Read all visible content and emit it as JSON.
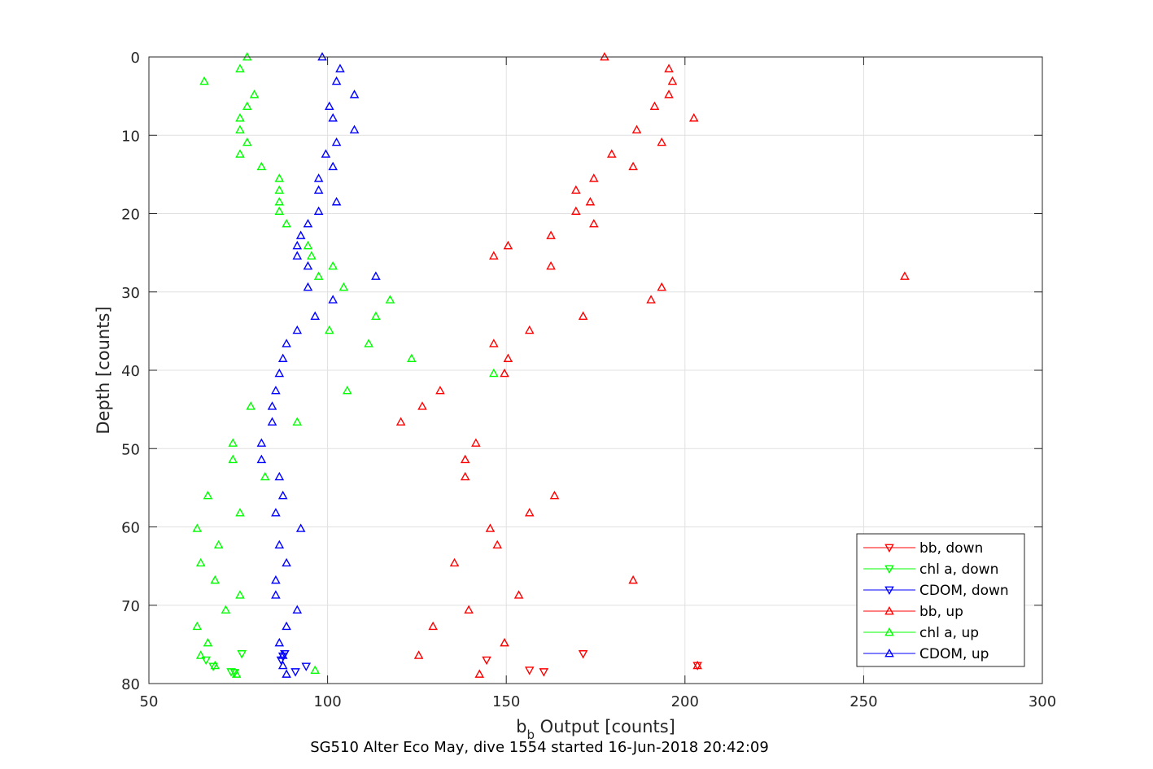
{
  "chart_data": {
    "type": "scatter",
    "x_label": {
      "main": "b",
      "sub": "b",
      "rest": " Output [counts]"
    },
    "ylabel": "Depth [counts]",
    "caption": "SG510 Alter Eco May, dive 1554 started 16-Jun-2018 20:42:09",
    "xlim": [
      50,
      300
    ],
    "ylim": [
      0,
      80
    ],
    "y_reversed": true,
    "grid": true,
    "legend_position": "bottom-right",
    "x_ticks": [
      "50",
      "100",
      "150",
      "200",
      "250",
      "300"
    ],
    "y_ticks": [
      "0",
      "10",
      "20",
      "30",
      "40",
      "50",
      "60",
      "70",
      "80"
    ],
    "series": [
      {
        "name": "bb, down",
        "color": "#ff0000",
        "marker": "triangle-down",
        "points": [
          [
            144.5,
            77.0
          ],
          [
            156.5,
            78.3
          ],
          [
            160.5,
            78.5
          ],
          [
            171.5,
            76.2
          ],
          [
            203.5,
            77.7
          ]
        ]
      },
      {
        "name": "chl a, down",
        "color": "#00ff00",
        "marker": "triangle-down",
        "points": [
          [
            66.0,
            77.0
          ],
          [
            68.0,
            77.8
          ],
          [
            73.0,
            78.5
          ],
          [
            74.0,
            78.6
          ],
          [
            76.0,
            76.2
          ]
        ]
      },
      {
        "name": "CDOM, down",
        "color": "#0000ff",
        "marker": "triangle-down",
        "points": [
          [
            87.0,
            77.0
          ],
          [
            87.5,
            76.5
          ],
          [
            88.0,
            76.2
          ],
          [
            91.0,
            78.5
          ],
          [
            94.0,
            77.8
          ]
        ]
      },
      {
        "name": "bb, up",
        "color": "#ff0000",
        "marker": "triangle-up",
        "points": [
          [
            177.5,
            0.0
          ],
          [
            195.5,
            1.5
          ],
          [
            196.5,
            3.1
          ],
          [
            195.5,
            4.8
          ],
          [
            191.5,
            6.3
          ],
          [
            202.5,
            7.8
          ],
          [
            186.5,
            9.3
          ],
          [
            193.5,
            10.9
          ],
          [
            179.5,
            12.4
          ],
          [
            185.5,
            14.0
          ],
          [
            174.5,
            15.5
          ],
          [
            169.5,
            17.0
          ],
          [
            173.5,
            18.5
          ],
          [
            169.5,
            19.7
          ],
          [
            174.5,
            21.3
          ],
          [
            162.5,
            22.8
          ],
          [
            150.5,
            24.1
          ],
          [
            146.5,
            25.4
          ],
          [
            162.5,
            26.7
          ],
          [
            261.5,
            28.0
          ],
          [
            193.5,
            29.4
          ],
          [
            190.5,
            31.0
          ],
          [
            171.5,
            33.1
          ],
          [
            156.5,
            34.9
          ],
          [
            146.5,
            36.6
          ],
          [
            150.5,
            38.5
          ],
          [
            149.5,
            40.4
          ],
          [
            131.5,
            42.6
          ],
          [
            126.5,
            44.6
          ],
          [
            120.5,
            46.6
          ],
          [
            141.5,
            49.3
          ],
          [
            138.5,
            51.4
          ],
          [
            138.5,
            53.6
          ],
          [
            163.5,
            56.0
          ],
          [
            156.5,
            58.2
          ],
          [
            145.5,
            60.2
          ],
          [
            147.5,
            62.3
          ],
          [
            135.5,
            64.6
          ],
          [
            185.5,
            66.8
          ],
          [
            153.5,
            68.7
          ],
          [
            139.5,
            70.6
          ],
          [
            129.5,
            72.7
          ],
          [
            149.5,
            74.8
          ],
          [
            125.5,
            76.4
          ],
          [
            142.5,
            78.8
          ],
          [
            203.5,
            77.7
          ]
        ]
      },
      {
        "name": "chl a, up",
        "color": "#00ff00",
        "marker": "triangle-up",
        "points": [
          [
            77.5,
            0.0
          ],
          [
            75.5,
            1.5
          ],
          [
            65.5,
            3.1
          ],
          [
            79.5,
            4.8
          ],
          [
            77.5,
            6.3
          ],
          [
            75.5,
            7.8
          ],
          [
            75.5,
            9.3
          ],
          [
            77.5,
            10.9
          ],
          [
            75.5,
            12.4
          ],
          [
            81.5,
            14.0
          ],
          [
            86.5,
            15.5
          ],
          [
            86.5,
            17.0
          ],
          [
            86.5,
            18.5
          ],
          [
            86.5,
            19.7
          ],
          [
            88.5,
            21.3
          ],
          [
            94.5,
            24.1
          ],
          [
            95.5,
            25.4
          ],
          [
            101.5,
            26.7
          ],
          [
            97.5,
            28.0
          ],
          [
            104.5,
            29.4
          ],
          [
            117.5,
            31.0
          ],
          [
            113.5,
            33.1
          ],
          [
            100.5,
            34.9
          ],
          [
            111.5,
            36.6
          ],
          [
            123.5,
            38.5
          ],
          [
            146.5,
            40.4
          ],
          [
            105.5,
            42.6
          ],
          [
            78.5,
            44.6
          ],
          [
            91.5,
            46.6
          ],
          [
            73.5,
            49.3
          ],
          [
            73.5,
            51.4
          ],
          [
            82.5,
            53.6
          ],
          [
            66.5,
            56.0
          ],
          [
            75.5,
            58.2
          ],
          [
            63.5,
            60.2
          ],
          [
            69.5,
            62.3
          ],
          [
            64.5,
            64.6
          ],
          [
            68.5,
            66.8
          ],
          [
            75.5,
            68.7
          ],
          [
            71.5,
            70.6
          ],
          [
            63.5,
            72.7
          ],
          [
            66.5,
            74.8
          ],
          [
            64.5,
            76.4
          ],
          [
            68.5,
            77.7
          ],
          [
            74.5,
            78.8
          ],
          [
            96.5,
            78.3
          ]
        ]
      },
      {
        "name": "CDOM, up",
        "color": "#0000ff",
        "marker": "triangle-up",
        "points": [
          [
            98.5,
            0.0
          ],
          [
            103.5,
            1.5
          ],
          [
            102.5,
            3.1
          ],
          [
            107.5,
            4.8
          ],
          [
            100.5,
            6.3
          ],
          [
            101.5,
            7.8
          ],
          [
            107.5,
            9.3
          ],
          [
            102.5,
            10.9
          ],
          [
            99.5,
            12.4
          ],
          [
            101.5,
            14.0
          ],
          [
            97.5,
            15.5
          ],
          [
            97.5,
            17.0
          ],
          [
            102.5,
            18.5
          ],
          [
            97.5,
            19.7
          ],
          [
            94.5,
            21.3
          ],
          [
            92.5,
            22.8
          ],
          [
            91.5,
            24.1
          ],
          [
            91.5,
            25.4
          ],
          [
            94.5,
            26.7
          ],
          [
            113.5,
            28.0
          ],
          [
            94.5,
            29.4
          ],
          [
            101.5,
            31.0
          ],
          [
            96.5,
            33.1
          ],
          [
            91.5,
            34.9
          ],
          [
            88.5,
            36.6
          ],
          [
            87.5,
            38.5
          ],
          [
            86.5,
            40.4
          ],
          [
            85.5,
            42.6
          ],
          [
            84.5,
            44.6
          ],
          [
            84.5,
            46.6
          ],
          [
            81.5,
            49.3
          ],
          [
            81.5,
            51.4
          ],
          [
            86.5,
            53.6
          ],
          [
            87.5,
            56.0
          ],
          [
            85.5,
            58.2
          ],
          [
            92.5,
            60.2
          ],
          [
            86.5,
            62.3
          ],
          [
            88.5,
            64.6
          ],
          [
            85.5,
            66.8
          ],
          [
            85.5,
            68.7
          ],
          [
            91.5,
            70.6
          ],
          [
            88.5,
            72.7
          ],
          [
            86.5,
            74.8
          ],
          [
            87.5,
            76.4
          ],
          [
            87.5,
            77.7
          ],
          [
            88.5,
            78.8
          ]
        ]
      }
    ]
  }
}
